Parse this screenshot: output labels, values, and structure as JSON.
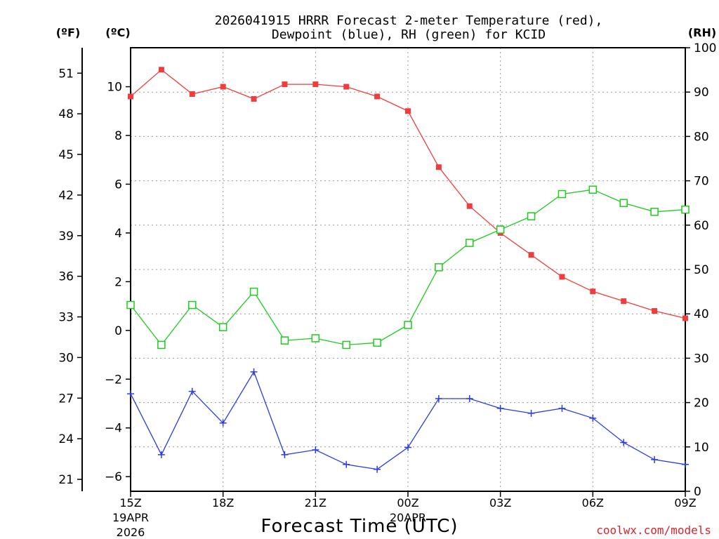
{
  "chart_data": {
    "type": "line",
    "title_lines": [
      "2026041915 HRRR Forecast 2-meter Temperature (red),",
      "Dewpoint (blue), RH (green) for KCID"
    ],
    "xlabel": "Forecast Time (UTC)",
    "credit": "coolwx.com/models",
    "units": {
      "fahrenheit": "(ºF)",
      "celsius": "(ºC)",
      "rh": "(RH)"
    },
    "x_hours": [
      0,
      1,
      2,
      3,
      4,
      5,
      6,
      7,
      8,
      9,
      10,
      11,
      12,
      13,
      14,
      15,
      16,
      17,
      18
    ],
    "x_ticks": [
      {
        "hour": 0,
        "label": "15Z",
        "date_line1": "19APR",
        "date_line2": "2026"
      },
      {
        "hour": 3,
        "label": "18Z",
        "date_line1": "",
        "date_line2": ""
      },
      {
        "hour": 6,
        "label": "21Z",
        "date_line1": "",
        "date_line2": ""
      },
      {
        "hour": 9,
        "label": "00Z",
        "date_line1": "20APR",
        "date_line2": ""
      },
      {
        "hour": 12,
        "label": "03Z",
        "date_line1": "",
        "date_line2": ""
      },
      {
        "hour": 15,
        "label": "06Z",
        "date_line1": "",
        "date_line2": ""
      },
      {
        "hour": 18,
        "label": "09Z",
        "date_line1": "",
        "date_line2": ""
      }
    ],
    "xlim": [
      0,
      18
    ],
    "celsius_axis": {
      "ylim": [
        -6.6,
        11.6
      ],
      "ticks": [
        -6,
        -4,
        -2,
        0,
        2,
        4,
        6,
        8,
        10
      ],
      "labels": [
        "−6",
        "−4",
        "−2",
        "0",
        "2",
        "4",
        "6",
        "8",
        "10"
      ]
    },
    "fahrenheit_axis": {
      "ticks": [
        21,
        24,
        27,
        30,
        33,
        36,
        39,
        42,
        45,
        48,
        51
      ],
      "labels": [
        "21",
        "24",
        "27",
        "30",
        "33",
        "36",
        "39",
        "42",
        "45",
        "48",
        "51"
      ]
    },
    "rh_axis": {
      "ylim": [
        0,
        100
      ],
      "ticks": [
        0,
        10,
        20,
        30,
        40,
        50,
        60,
        70,
        80,
        90,
        100
      ],
      "labels": [
        "0",
        "10",
        "20",
        "30",
        "40",
        "50",
        "60",
        "70",
        "80",
        "90",
        "100"
      ]
    },
    "series": [
      {
        "name": "2-meter Temperature",
        "axis": "celsius",
        "color": "#f03c3c",
        "marker": "filled-square",
        "values": [
          9.6,
          10.7,
          9.7,
          10.0,
          9.5,
          10.1,
          10.1,
          10.0,
          9.6,
          9.0,
          6.7,
          5.1,
          4.0,
          3.1,
          2.2,
          1.6,
          1.2,
          0.8,
          0.5
        ]
      },
      {
        "name": "Dewpoint",
        "axis": "celsius",
        "color": "#2a3ce6",
        "marker": "plus",
        "values": [
          -2.6,
          -5.1,
          -2.5,
          -3.8,
          -1.7,
          -5.1,
          -4.9,
          -5.5,
          -5.7,
          -4.8,
          -2.8,
          -2.8,
          -3.2,
          -3.4,
          -3.2,
          -3.6,
          -4.6,
          -5.3,
          -5.5
        ]
      },
      {
        "name": "Relative Humidity",
        "axis": "rh",
        "color": "#1ecb1e",
        "marker": "open-square",
        "values": [
          42,
          33,
          42,
          37,
          45,
          34,
          34.5,
          33,
          33.5,
          37.5,
          50.5,
          56,
          59,
          62,
          67,
          68,
          65,
          63,
          63.5
        ]
      }
    ]
  }
}
